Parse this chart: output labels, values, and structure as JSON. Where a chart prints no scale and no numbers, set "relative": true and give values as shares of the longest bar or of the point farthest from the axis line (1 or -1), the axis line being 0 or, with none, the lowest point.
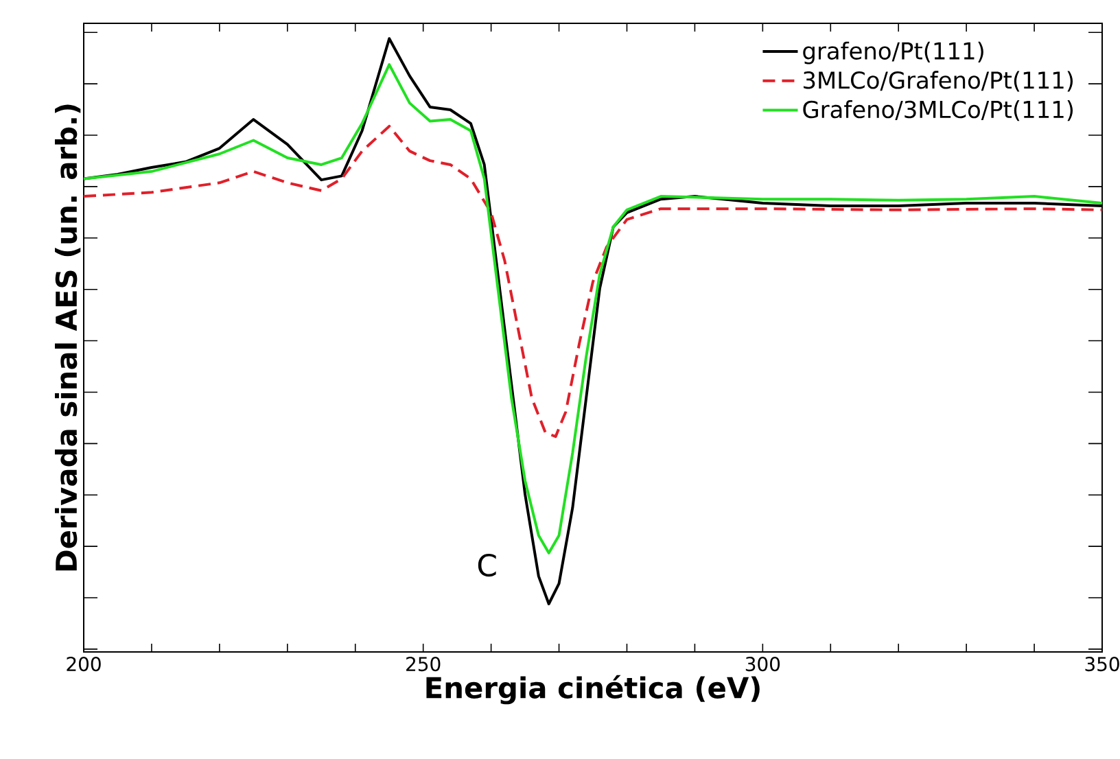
{
  "chart_data": {
    "type": "line",
    "relative": true,
    "xlabel": "Energia cinética (eV)",
    "ylabel": "Derivada sinal AES (un. arb.)",
    "xlim": [
      200,
      350
    ],
    "xticks": [
      200,
      250,
      300,
      350
    ],
    "legend": "top right",
    "marker": "none",
    "annotations": [
      "C"
    ],
    "series": [
      {
        "name": "grafeno/Pt(111)",
        "color": "#000000",
        "line_style": "solid",
        "x": [
          200,
          205,
          210,
          215,
          220,
          225,
          230,
          235,
          238,
          241,
          245,
          248,
          251,
          254,
          257,
          259,
          261,
          263,
          265,
          267,
          268.5,
          270,
          272,
          274,
          276,
          278,
          280,
          285,
          290,
          300,
          310,
          320,
          330,
          340,
          350
        ],
        "values": [
          0.752,
          0.76,
          0.772,
          0.782,
          0.806,
          0.857,
          0.813,
          0.75,
          0.757,
          0.837,
          1.0,
          0.934,
          0.879,
          0.874,
          0.85,
          0.777,
          0.583,
          0.388,
          0.194,
          0.049,
          0.0,
          0.036,
          0.17,
          0.364,
          0.558,
          0.667,
          0.692,
          0.716,
          0.721,
          0.709,
          0.704,
          0.704,
          0.709,
          0.709,
          0.704
        ]
      },
      {
        "name": "3MLCo/Grafeno/Pt(111)",
        "color": "#e0202a",
        "line_style": "dashed",
        "x": [
          200,
          210,
          220,
          225,
          230,
          235,
          238,
          241,
          245,
          248,
          251,
          254,
          257,
          260,
          262,
          264,
          266,
          268,
          269.5,
          271,
          273,
          275,
          277,
          280,
          285,
          300,
          320,
          340,
          350
        ],
        "values": [
          0.721,
          0.728,
          0.745,
          0.765,
          0.745,
          0.731,
          0.752,
          0.801,
          0.845,
          0.801,
          0.784,
          0.777,
          0.752,
          0.692,
          0.607,
          0.485,
          0.364,
          0.303,
          0.296,
          0.34,
          0.461,
          0.57,
          0.631,
          0.68,
          0.699,
          0.699,
          0.697,
          0.699,
          0.697
        ]
      },
      {
        "name": "Grafeno/3MLCo/Pt(111)",
        "color": "#22e022",
        "line_style": "solid",
        "x": [
          200,
          210,
          220,
          225,
          230,
          235,
          238,
          241,
          245,
          248,
          251,
          254,
          257,
          259,
          261,
          263,
          265,
          267,
          268.5,
          270,
          272,
          274,
          276,
          278,
          280,
          285,
          300,
          310,
          320,
          330,
          340,
          350
        ],
        "values": [
          0.752,
          0.765,
          0.796,
          0.82,
          0.789,
          0.777,
          0.789,
          0.85,
          0.954,
          0.886,
          0.854,
          0.857,
          0.837,
          0.752,
          0.558,
          0.364,
          0.218,
          0.121,
          0.09,
          0.121,
          0.267,
          0.437,
          0.583,
          0.667,
          0.697,
          0.721,
          0.716,
          0.716,
          0.714,
          0.716,
          0.721,
          0.709
        ]
      }
    ]
  }
}
